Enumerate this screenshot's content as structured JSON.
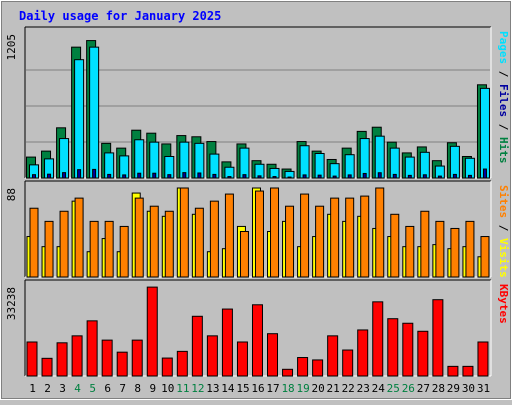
{
  "title": "Daily usage for January 2025",
  "colors": {
    "background": "#c0c0c0",
    "title": "#0000ff",
    "hits": "#008040",
    "files": "#00e0ff",
    "pages": "#0000a0",
    "visits": "#ffff00",
    "sites": "#ff8000",
    "kbytes": "#ff0000",
    "weekend_label": "#008040",
    "grid": "#808080"
  },
  "chart_data": [
    {
      "type": "bar",
      "name": "hits-files-pages",
      "axis_label": "Pages / Files / Hits",
      "axis_label_parts": [
        "Pages",
        "Files",
        "Hits"
      ],
      "max_label": "1205",
      "ylim": [
        0,
        1205
      ],
      "grid": true,
      "categories": [
        "1",
        "2",
        "3",
        "4",
        "5",
        "6",
        "7",
        "8",
        "9",
        "10",
        "11",
        "12",
        "13",
        "14",
        "15",
        "16",
        "17",
        "18",
        "19",
        "20",
        "21",
        "22",
        "23",
        "24",
        "25",
        "26",
        "27",
        "28",
        "29",
        "30",
        "31"
      ],
      "series": [
        {
          "name": "Hits",
          "values": [
            175,
            225,
            420,
            1095,
            1150,
            290,
            250,
            400,
            375,
            285,
            355,
            345,
            305,
            135,
            285,
            145,
            115,
            75,
            305,
            225,
            155,
            250,
            390,
            425,
            300,
            210,
            260,
            145,
            295,
            180,
            780
          ]
        },
        {
          "name": "Files",
          "values": [
            110,
            160,
            330,
            990,
            1095,
            210,
            185,
            320,
            300,
            180,
            300,
            290,
            200,
            90,
            250,
            115,
            80,
            55,
            270,
            205,
            120,
            195,
            330,
            350,
            250,
            175,
            215,
            100,
            265,
            165,
            750
          ]
        },
        {
          "name": "Pages",
          "values": [
            28,
            32,
            45,
            70,
            72,
            30,
            26,
            40,
            40,
            28,
            45,
            42,
            30,
            12,
            28,
            18,
            12,
            8,
            26,
            24,
            16,
            26,
            38,
            44,
            30,
            22,
            27,
            16,
            30,
            22,
            75
          ]
        }
      ]
    },
    {
      "type": "bar",
      "name": "visits-sites",
      "axis_label": "Sites / Visits",
      "axis_label_parts": [
        "Sites",
        "Visits"
      ],
      "max_label": "88",
      "ylim": [
        0,
        88
      ],
      "grid": false,
      "categories": [
        "1",
        "2",
        "3",
        "4",
        "5",
        "6",
        "7",
        "8",
        "9",
        "10",
        "11",
        "12",
        "13",
        "14",
        "15",
        "16",
        "17",
        "18",
        "19",
        "20",
        "21",
        "22",
        "23",
        "24",
        "25",
        "26",
        "27",
        "28",
        "29",
        "30",
        "31"
      ],
      "series": [
        {
          "name": "Visits",
          "values": [
            40,
            30,
            30,
            75,
            25,
            38,
            25,
            83,
            65,
            60,
            88,
            62,
            25,
            28,
            50,
            88,
            45,
            55,
            30,
            40,
            62,
            55,
            60,
            48,
            40,
            30,
            30,
            32,
            28,
            30,
            20
          ]
        },
        {
          "name": "Sites",
          "values": [
            68,
            55,
            65,
            78,
            55,
            55,
            50,
            78,
            70,
            65,
            88,
            68,
            75,
            82,
            45,
            85,
            88,
            70,
            82,
            70,
            78,
            78,
            80,
            88,
            62,
            50,
            65,
            55,
            48,
            55,
            40
          ]
        }
      ]
    },
    {
      "type": "bar",
      "name": "kbytes",
      "axis_label": "KBytes",
      "max_label": "33238",
      "ylim": [
        0,
        33238
      ],
      "grid": false,
      "categories": [
        "1",
        "2",
        "3",
        "4",
        "5",
        "6",
        "7",
        "8",
        "9",
        "10",
        "11",
        "12",
        "13",
        "14",
        "15",
        "16",
        "17",
        "18",
        "19",
        "20",
        "21",
        "22",
        "23",
        "24",
        "25",
        "26",
        "27",
        "28",
        "29",
        "30",
        "31"
      ],
      "series": [
        {
          "name": "KBytes",
          "values": [
            12700,
            6600,
            12400,
            15000,
            20600,
            13400,
            8900,
            13400,
            33200,
            6700,
            9200,
            22300,
            15000,
            25000,
            12700,
            26600,
            15800,
            2500,
            6900,
            6000,
            15000,
            9700,
            17200,
            27700,
            21400,
            19700,
            16700,
            28500,
            3600,
            3600,
            12700
          ]
        }
      ]
    }
  ],
  "day_labels": [
    "1",
    "2",
    "3",
    "4",
    "5",
    "6",
    "7",
    "8",
    "9",
    "10",
    "11",
    "12",
    "13",
    "14",
    "15",
    "16",
    "17",
    "18",
    "19",
    "20",
    "21",
    "22",
    "23",
    "24",
    "25",
    "26",
    "27",
    "28",
    "29",
    "30",
    "31"
  ],
  "weekend_days": [
    4,
    5,
    11,
    12,
    18,
    19,
    25,
    26
  ]
}
